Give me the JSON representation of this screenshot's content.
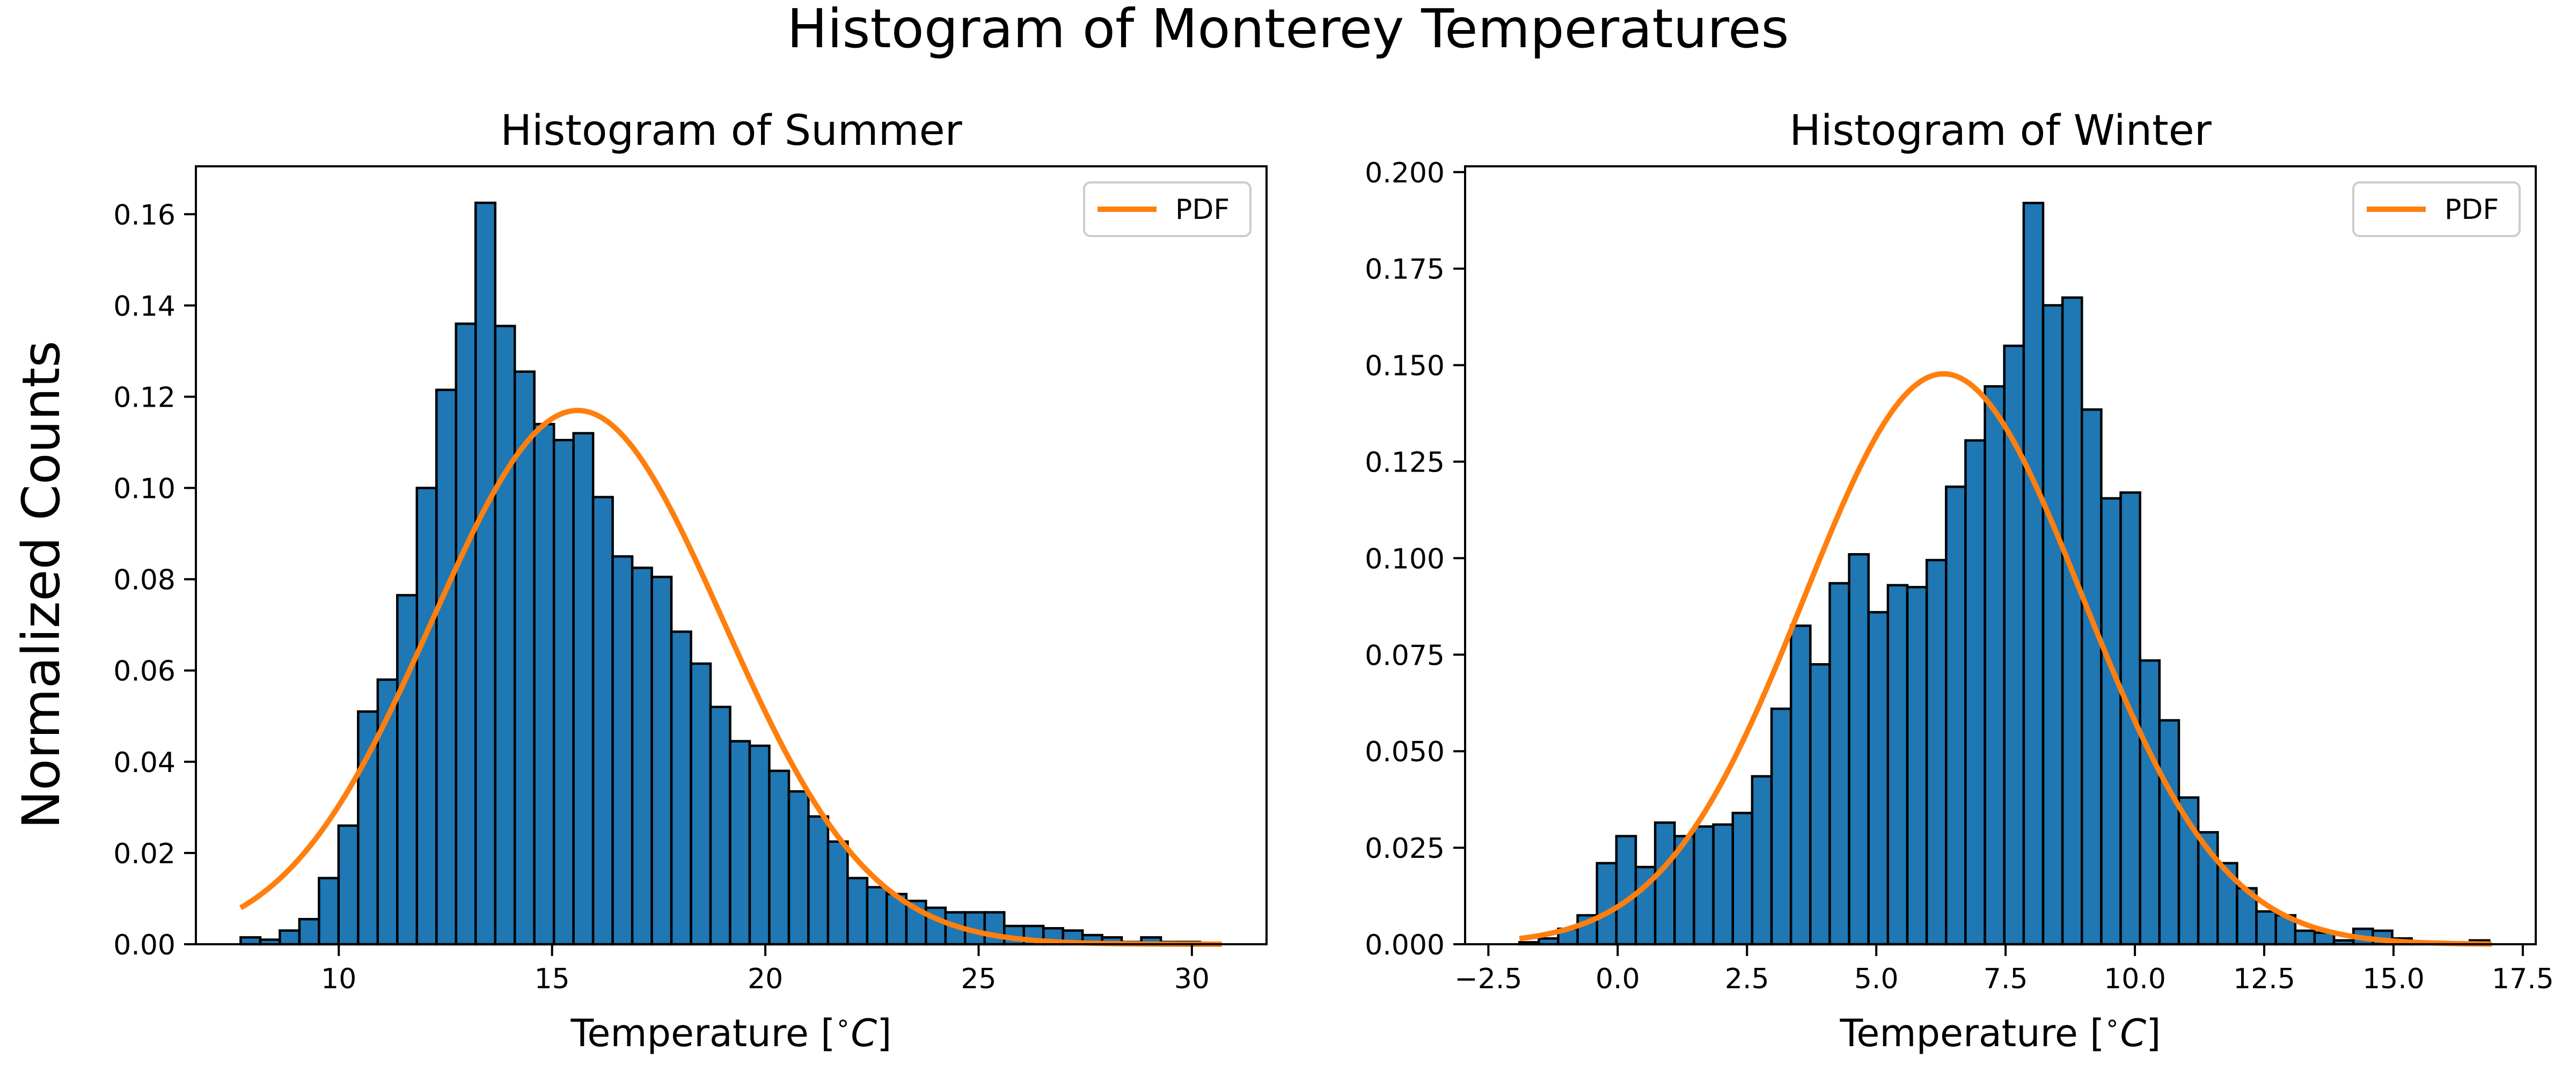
{
  "figure": {
    "suptitle": "Histogram of Monterey Temperatures",
    "ylabel": "Normalized Counts",
    "bar_color": "#1f77b4",
    "edge_color": "#000000",
    "pdf_color": "#ff7f0e"
  },
  "chart_data": [
    {
      "type": "bar",
      "title": "Histogram of Summer",
      "xlabel": "Temperature [$^\\circ C$]",
      "xlabel_text": "Temperature [",
      "xlabel_unit_symbol": "∘",
      "xlabel_unit_letter": "C",
      "xlabel_close": "]",
      "ylabel": "Normalized Counts",
      "xlim": [
        6.65,
        31.75
      ],
      "ylim": [
        0,
        0.1705
      ],
      "xticks": [
        10,
        15,
        20,
        25,
        30
      ],
      "xtick_labels": [
        "10",
        "15",
        "20",
        "25",
        "30"
      ],
      "yticks": [
        0,
        0.02,
        0.04,
        0.06,
        0.08,
        0.1,
        0.12,
        0.14,
        0.16
      ],
      "ytick_labels": [
        "0.00",
        "0.02",
        "0.04",
        "0.06",
        "0.08",
        "0.10",
        "0.12",
        "0.14",
        "0.16"
      ],
      "bin_start": 7.7,
      "bin_width": 0.459,
      "values": [
        0.0015,
        0.001,
        0.003,
        0.0055,
        0.0145,
        0.026,
        0.051,
        0.058,
        0.0765,
        0.1,
        0.1215,
        0.136,
        0.1625,
        0.1355,
        0.1255,
        0.114,
        0.1105,
        0.112,
        0.098,
        0.085,
        0.0825,
        0.0805,
        0.0685,
        0.0615,
        0.052,
        0.0445,
        0.0435,
        0.038,
        0.0335,
        0.028,
        0.0225,
        0.0145,
        0.0125,
        0.011,
        0.0095,
        0.008,
        0.007,
        0.007,
        0.007,
        0.004,
        0.004,
        0.0035,
        0.003,
        0.002,
        0.0015,
        0.0005,
        0.0015,
        0.0005,
        0.0005
      ],
      "legend": {
        "label": "PDF",
        "position": "upper right"
      },
      "pdf": {
        "mean": 15.6,
        "std": 3.41,
        "x_start": 7.7,
        "x_end": 30.7
      }
    },
    {
      "type": "bar",
      "title": "Histogram of Winter",
      "xlabel": "Temperature [$^\\circ C$]",
      "xlabel_text": "Temperature [",
      "xlabel_unit_symbol": "∘",
      "xlabel_unit_letter": "C",
      "xlabel_close": "]",
      "ylabel": "",
      "xlim": [
        -2.95,
        17.75
      ],
      "ylim": [
        0,
        0.2015
      ],
      "xticks": [
        -2.5,
        0,
        2.5,
        5,
        7.5,
        10,
        12.5,
        15,
        17.5
      ],
      "xtick_labels": [
        "−2.5",
        "0.0",
        "2.5",
        "5.0",
        "7.5",
        "10.0",
        "12.5",
        "15.0",
        "17.5"
      ],
      "yticks": [
        0,
        0.025,
        0.05,
        0.075,
        0.1,
        0.125,
        0.15,
        0.175,
        0.2
      ],
      "ytick_labels": [
        "0.000",
        "0.025",
        "0.050",
        "0.075",
        "0.100",
        "0.125",
        "0.150",
        "0.175",
        "0.200"
      ],
      "bin_start": -1.9,
      "bin_width": 0.375,
      "values": [
        0.0005,
        0.0015,
        0.004,
        0.0075,
        0.021,
        0.028,
        0.02,
        0.0315,
        0.028,
        0.0305,
        0.031,
        0.034,
        0.0435,
        0.061,
        0.0825,
        0.0725,
        0.0935,
        0.101,
        0.086,
        0.093,
        0.0925,
        0.0995,
        0.1185,
        0.1305,
        0.1445,
        0.155,
        0.192,
        0.1655,
        0.1675,
        0.1385,
        0.1155,
        0.117,
        0.0735,
        0.058,
        0.038,
        0.029,
        0.021,
        0.0145,
        0.0085,
        0.0075,
        0.0035,
        0.003,
        0.001,
        0.004,
        0.0035,
        0.0015,
        0.0005,
        0,
        0,
        0.001
      ],
      "legend": {
        "label": "PDF",
        "position": "upper right"
      },
      "pdf": {
        "mean": 6.3,
        "std": 2.7,
        "x_start": -1.9,
        "x_end": 16.9
      }
    }
  ]
}
